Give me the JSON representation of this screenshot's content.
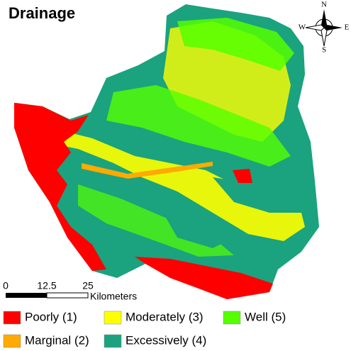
{
  "title": "Drainage",
  "compass": {
    "n": "N",
    "s": "S",
    "e": "E",
    "w": "W"
  },
  "scale_bar": {
    "labels": [
      "0",
      "12.5",
      "25"
    ],
    "unit": "Kilometers"
  },
  "legend": [
    {
      "label": "Poorly (1)",
      "color": "#ff0000"
    },
    {
      "label": "Moderately (3)",
      "color": "#ffff00"
    },
    {
      "label": "Well (5)",
      "color": "#55ff00"
    },
    {
      "label": "Marginal (2)",
      "color": "#ffaa00"
    },
    {
      "label": "Excessively (4)",
      "color": "#1aa37e"
    }
  ]
}
